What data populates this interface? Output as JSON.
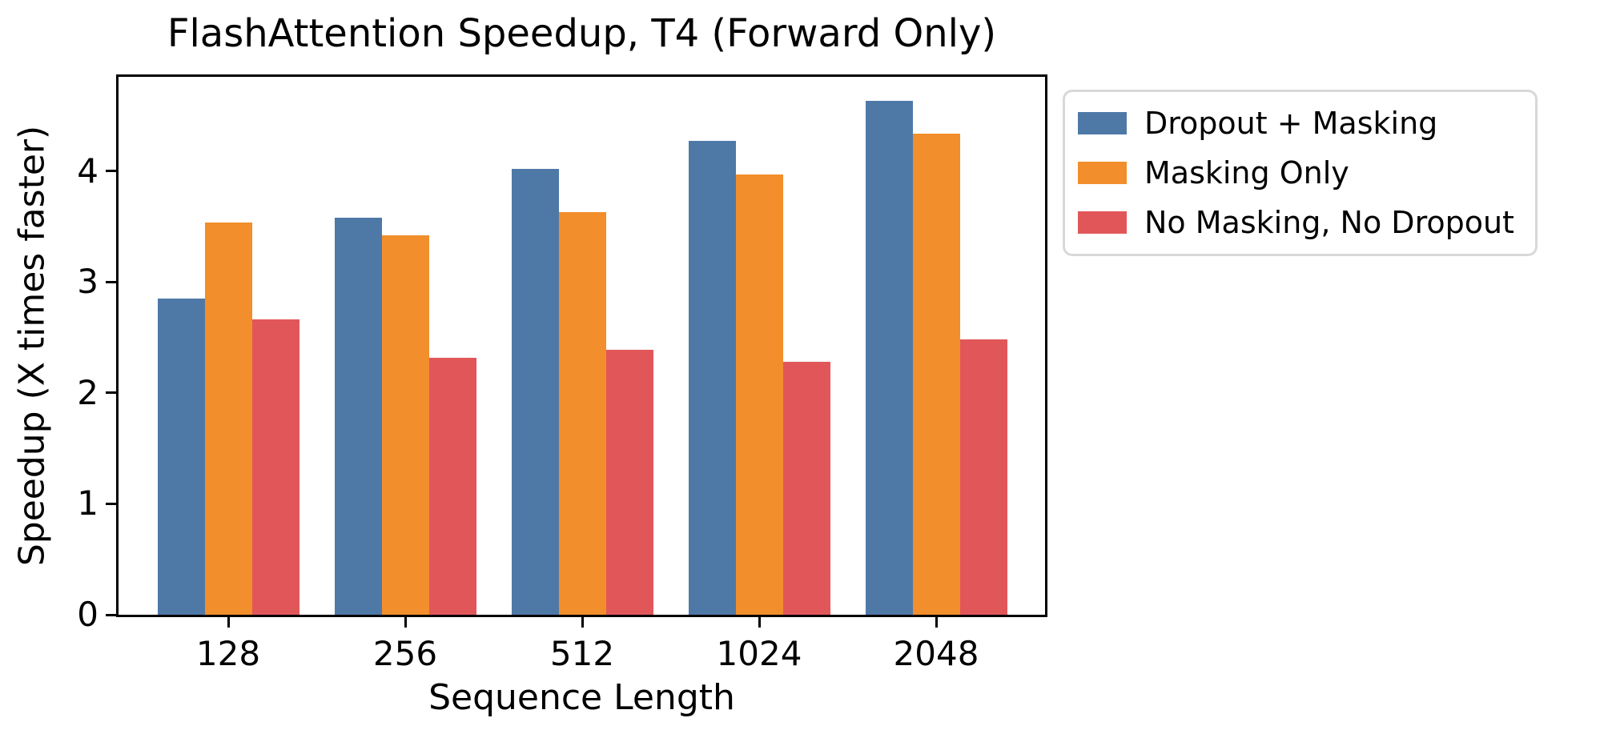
{
  "title": "FlashAttention Speedup, T4 (Forward Only)",
  "chart_data": {
    "type": "bar",
    "title": "FlashAttention Speedup, T4 (Forward Only)",
    "xlabel": "Sequence Length",
    "ylabel": "Speedup (X times faster)",
    "categories": [
      "128",
      "256",
      "512",
      "1024",
      "2048"
    ],
    "series": [
      {
        "name": "Dropout + Masking",
        "color": "#4E79A7",
        "values": [
          2.85,
          3.58,
          4.02,
          4.27,
          4.63
        ]
      },
      {
        "name": "Masking Only",
        "color": "#F28E2B",
        "values": [
          3.54,
          3.42,
          3.63,
          3.97,
          4.34
        ]
      },
      {
        "name": "No Masking, No Dropout",
        "color": "#E15759",
        "values": [
          2.66,
          2.32,
          2.39,
          2.28,
          2.48
        ]
      }
    ],
    "yticks": [
      0,
      1,
      2,
      3,
      4
    ],
    "ylim": [
      0,
      4.85
    ],
    "grid": false,
    "legend_position": "outside-right",
    "colors": {
      "axis": "#000000",
      "legend_border": "#d8d8d8",
      "background": "#ffffff"
    }
  }
}
